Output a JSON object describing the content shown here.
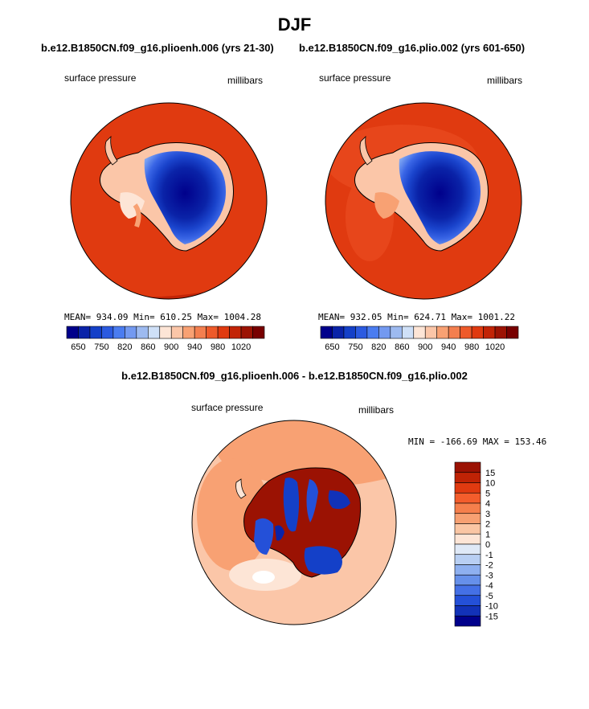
{
  "title": "DJF",
  "panels": [
    {
      "case": "b.e12.B1850CN.f09_g16.plioenh.006 (yrs 21-30)",
      "left_label": "surface pressure",
      "right_label": "millibars",
      "stats": "MEAN= 934.09   Min= 610.25   Max= 1004.28"
    },
    {
      "case": "b.e12.B1850CN.f09_g16.plio.002 (yrs 601-650)",
      "left_label": "surface pressure",
      "right_label": "millibars",
      "stats": "MEAN= 932.05   Min= 624.71   Max= 1001.22"
    }
  ],
  "absolute_colorbar": {
    "colors": [
      "#00008b",
      "#0a23a8",
      "#1440c8",
      "#2b5ae0",
      "#4a7cf0",
      "#7399f0",
      "#9dbaf0",
      "#cfe0f7",
      "#fde5d6",
      "#fbc6a8",
      "#f8a173",
      "#f37f4f",
      "#ee5a2a",
      "#e03a10",
      "#c22406",
      "#9c1303",
      "#780000"
    ],
    "tick_labels": [
      "650",
      "750",
      "820",
      "860",
      "900",
      "940",
      "980",
      "1020"
    ]
  },
  "difference": {
    "title": "b.e12.B1850CN.f09_g16.plioenh.006 - b.e12.B1850CN.f09_g16.plio.002",
    "left_label": "surface pressure",
    "right_label": "millibars",
    "stats": "MIN = -166.69  MAX = 153.46",
    "colorbar": {
      "colors": [
        "#9b1203",
        "#bf2305",
        "#e03a10",
        "#f35d2c",
        "#f57f4c",
        "#f7a072",
        "#fac6a4",
        "#fde5d6",
        "#dfe9f7",
        "#b8cff3",
        "#8eb0f0",
        "#6690ea",
        "#4470e6",
        "#2450d8",
        "#1232b8",
        "#00008b"
      ],
      "labels": [
        "15",
        "10",
        "5",
        "4",
        "3",
        "2",
        "1",
        "0",
        "-1",
        "-2",
        "-3",
        "-4",
        "-5",
        "-10",
        "-15"
      ]
    }
  }
}
